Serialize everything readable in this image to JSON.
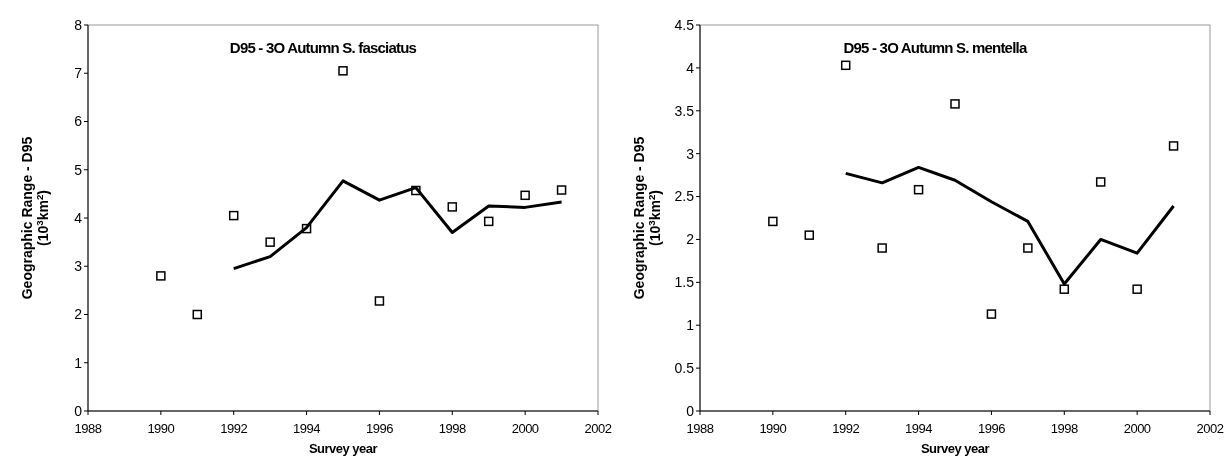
{
  "chart_data": [
    {
      "type": "line",
      "title": "D95 - 3O Autumn S. fasciatus",
      "xlabel": "Survey year",
      "ylabel": "Geographic Range - D95\n(10$^{3}$km$^{2}$)",
      "xlim": [
        1988,
        2002
      ],
      "xticks": [
        1988,
        1990,
        1992,
        1994,
        1996,
        1998,
        2000,
        2002
      ],
      "ylim": [
        0,
        8
      ],
      "yticks": [
        0,
        1,
        2,
        3,
        4,
        5,
        6,
        7,
        8
      ],
      "grid": false,
      "series": [
        {
          "type": "scatter",
          "color": "#000000",
          "marker": "square",
          "x": [
            1990,
            1991,
            1992,
            1993,
            1994,
            1995,
            1996,
            1997,
            1998,
            1999,
            2000,
            2001
          ],
          "values": [
            2.8,
            2.0,
            4.05,
            3.5,
            3.78,
            7.05,
            2.28,
            4.57,
            4.23,
            3.93,
            4.47,
            4.58
          ]
        },
        {
          "color": "#000000",
          "marker": "none",
          "line_style": "solid",
          "x": [
            1992,
            1993,
            1994,
            1995,
            1996,
            1997,
            1998,
            1999,
            2000,
            2001
          ],
          "values": [
            2.95,
            3.2,
            3.8,
            4.77,
            4.37,
            4.63,
            3.7,
            4.25,
            4.22,
            4.33
          ]
        }
      ]
    },
    {
      "type": "line",
      "title": "D95 - 3O Autumn S. mentella",
      "xlabel": "Survey year",
      "ylabel": "Geographic Range - D95\n(10$^{3}$km$^{2}$)",
      "xlim": [
        1988,
        2002
      ],
      "xticks": [
        1988,
        1990,
        1992,
        1994,
        1996,
        1998,
        2000,
        2002
      ],
      "ylim": [
        0,
        4.5
      ],
      "yticks": [
        0,
        0.5,
        1,
        1.5,
        2,
        2.5,
        3,
        3.5,
        4,
        4.5
      ],
      "grid": false,
      "series": [
        {
          "type": "scatter",
          "color": "#000000",
          "marker": "square",
          "x": [
            1990,
            1991,
            1992,
            1993,
            1994,
            1995,
            1996,
            1997,
            1998,
            1999,
            2000,
            2001
          ],
          "values": [
            2.21,
            2.05,
            4.03,
            1.9,
            2.58,
            3.58,
            1.13,
            1.9,
            1.42,
            2.67,
            1.42,
            3.09
          ]
        },
        {
          "color": "#000000",
          "marker": "none",
          "line_style": "solid",
          "x": [
            1992,
            1993,
            1994,
            1995,
            1996,
            1997,
            1998,
            1999,
            2000,
            2001
          ],
          "values": [
            2.77,
            2.66,
            2.84,
            2.69,
            2.44,
            2.21,
            1.48,
            2.0,
            1.84,
            2.39
          ]
        }
      ]
    }
  ]
}
